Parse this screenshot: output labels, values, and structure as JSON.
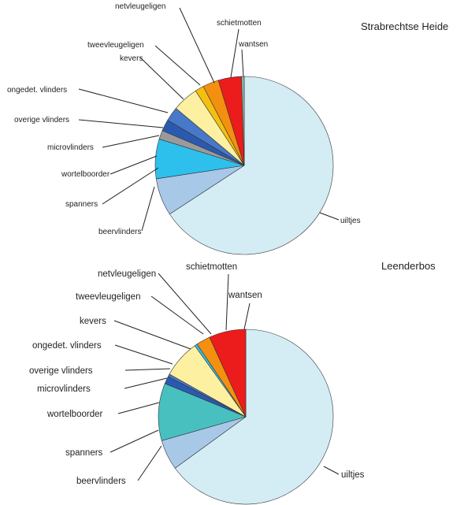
{
  "chart_data": [
    {
      "type": "pie",
      "title": "Strabrechtse Heide",
      "start_angle_deg": 0,
      "direction": "clockwise",
      "slices": [
        {
          "label": "uiltjes",
          "value": 65.8,
          "color": "#d4ecf4"
        },
        {
          "label": "beervlinders",
          "value": 6.8,
          "color": "#a8c8e8"
        },
        {
          "label": "spanners",
          "value": 0.0,
          "color": "#6a9ad0"
        },
        {
          "label": "wortelboorder",
          "value": 7.2,
          "color": "#2ec0ec"
        },
        {
          "label": "microvlinders",
          "value": 1.6,
          "color": "#9a9a9a"
        },
        {
          "label": "overige vlinders",
          "value": 2.1,
          "color": "#2a5ab0"
        },
        {
          "label": "ongedet. vlinders",
          "value": 2.6,
          "color": "#4878c8"
        },
        {
          "label": "kevers",
          "value": 4.7,
          "color": "#fdf0a0"
        },
        {
          "label": "tweevleugeligen",
          "value": 1.6,
          "color": "#f4c010"
        },
        {
          "label": "netvleugeligen",
          "value": 2.9,
          "color": "#f49010"
        },
        {
          "label": "schietmotten",
          "value": 4.2,
          "color": "#ec1c1c"
        },
        {
          "label": "wantsen",
          "value": 0.5,
          "color": "#88b8a8"
        }
      ]
    },
    {
      "type": "pie",
      "title": "Leenderbos",
      "start_angle_deg": 0,
      "direction": "clockwise",
      "slices": [
        {
          "label": "uiltjes",
          "value": 65.0,
          "color": "#d4ecf4"
        },
        {
          "label": "beervlinders",
          "value": 5.6,
          "color": "#a8c8e8"
        },
        {
          "label": "spanners",
          "value": 0.0,
          "color": "#6a9ad0"
        },
        {
          "label": "wortelboorder",
          "value": 10.6,
          "color": "#48c0c0"
        },
        {
          "label": "microvlinders",
          "value": 0.0,
          "color": "#9a9a9a"
        },
        {
          "label": "overige vlinders",
          "value": 1.4,
          "color": "#2a5ab0"
        },
        {
          "label": "ongedet. vlinders",
          "value": 0.5,
          "color": "#4878c8"
        },
        {
          "label": "kevers",
          "value": 7.0,
          "color": "#fdf0a0"
        },
        {
          "label": "tweevleugeligen",
          "value": 0.5,
          "color": "#2ec0ec"
        },
        {
          "label": "netvleugeligen",
          "value": 2.6,
          "color": "#f49010"
        },
        {
          "label": "schietmotten",
          "value": 0.0,
          "color": "#f4c010"
        },
        {
          "label": "wantsen",
          "value": 6.8,
          "color": "#ec1c1c"
        }
      ]
    }
  ]
}
